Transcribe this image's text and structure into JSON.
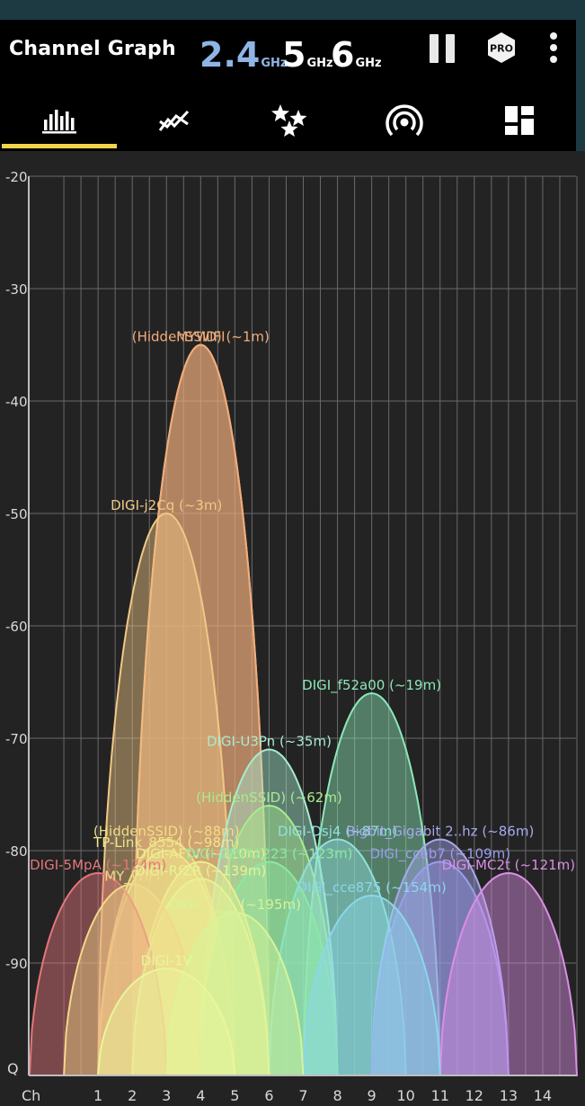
{
  "app": {
    "title": "Channel Graph"
  },
  "bands": [
    {
      "label": "2.4",
      "unit": "GHz",
      "active": true
    },
    {
      "label": "5",
      "unit": "GHz",
      "active": false
    },
    {
      "label": "6",
      "unit": "GHz",
      "active": false
    }
  ],
  "toolbar": {
    "pause": "pause-icon",
    "pro_badge": "PRO",
    "more": "more-vert-icon"
  },
  "tabs": [
    {
      "name": "tab-channel-graph",
      "icon": "bar-chart-icon",
      "selected": true
    },
    {
      "name": "tab-time-graph",
      "icon": "line-graph-icon",
      "selected": false
    },
    {
      "name": "tab-channel-rating",
      "icon": "stars-icon",
      "selected": false
    },
    {
      "name": "tab-access-points",
      "icon": "wifi-signal-icon",
      "selected": false
    },
    {
      "name": "tab-dashboard",
      "icon": "dashboard-icon",
      "selected": false
    }
  ],
  "chart_data": {
    "type": "area",
    "xlabel": "Ch",
    "ylabel": "Q",
    "x_ticks": [
      1,
      2,
      3,
      4,
      5,
      6,
      7,
      8,
      9,
      10,
      11,
      12,
      13,
      14
    ],
    "y_ticks": [
      -20,
      -30,
      -40,
      -50,
      -60,
      -70,
      -80,
      -90
    ],
    "ylim": [
      -100,
      -20
    ],
    "xlim": [
      -1,
      15
    ],
    "series": [
      {
        "name": "DIGI-5MpA (~124m)",
        "channel": 1,
        "level": -82,
        "color": "#e4767a"
      },
      {
        "name": "(HiddenSSID) (~1m)",
        "channel": 4,
        "level": -35,
        "color": "#f0ad7c"
      },
      {
        "name": "MYWIFI",
        "channel": 4,
        "level": -35,
        "color": "#f0ad7c"
      },
      {
        "name": "DIGI-j2Cq (~3m)",
        "channel": 3,
        "level": -50,
        "color": "#f2c886"
      },
      {
        "name": "MY_WIFI",
        "channel": 2,
        "level": -83,
        "color": "#f2d889"
      },
      {
        "name": "(HiddenSSID) (~88m)",
        "channel": 3,
        "level": -79,
        "color": "#f0dd86"
      },
      {
        "name": "TP-Link_8554 (~98m)",
        "channel": 3,
        "level": -80,
        "color": "#efe58d"
      },
      {
        "name": "DIGI-AFtV (~110m)",
        "channel": 4,
        "level": -81,
        "color": "#eded90"
      },
      {
        "name": "DIGI-RfZR (~139m)",
        "channel": 4,
        "level": -82.5,
        "color": "#e8f296"
      },
      {
        "name": "DIGI-_____ (~195m)",
        "channel": 5,
        "level": -85.5,
        "color": "#d6f39a"
      },
      {
        "name": "DIGI-1V",
        "channel": 3,
        "level": -90.5,
        "color": "#e9f69c"
      },
      {
        "name": "(HiddenSSID) (~62m)",
        "channel": 6,
        "level": -76,
        "color": "#a7ec8f"
      },
      {
        "name": "DIGI-28952223 (~123m)",
        "channel": 6,
        "level": -81,
        "color": "#8be9a2"
      },
      {
        "name": "DIGI-U3Pn (~35m)",
        "channel": 6,
        "level": -71,
        "color": "#a7ecd0"
      },
      {
        "name": "DIGI-Dsj4 (~87m)",
        "channel": 8,
        "level": -79,
        "color": "#8fe1dd"
      },
      {
        "name": "DIGI_cce875 (~154m)",
        "channel": 9,
        "level": -84,
        "color": "#8bd6ec"
      },
      {
        "name": "DIGI_f52a00 (~19m)",
        "channel": 9,
        "level": -66,
        "color": "#8ce8b8"
      },
      {
        "name": "Bigbit_Gigabit 2..hz (~86m)",
        "channel": 11,
        "level": -79,
        "color": "#a7a9ef"
      },
      {
        "name": "DIGI_cceb7 (~109m)",
        "channel": 11,
        "level": -81,
        "color": "#9b9cf0"
      },
      {
        "name": "DIGI-MC2t (~121m)",
        "channel": 13,
        "level": -82,
        "color": "#dc8ee6"
      }
    ]
  }
}
